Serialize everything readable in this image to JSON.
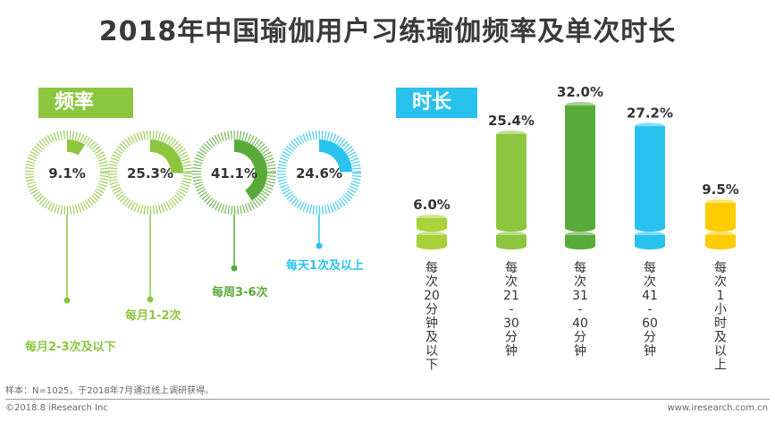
{
  "title": "2018年中国瑜伽用户习练瑜伽频率及单次时长",
  "chart_data": [
    {
      "type": "pie",
      "tag": "频率",
      "items": [
        {
          "label": "每月2-3次及以下",
          "value": 9.1,
          "value_label": "9.1%",
          "color": "#8cc63f"
        },
        {
          "label": "每月1-2次",
          "value": 25.3,
          "value_label": "25.3%",
          "color": "#8cc63f"
        },
        {
          "label": "每周3-6次",
          "value": 41.1,
          "value_label": "41.1%",
          "color": "#5aaa3a"
        },
        {
          "label": "每天1次及以上",
          "value": 24.6,
          "value_label": "24.6%",
          "color": "#29c2ee"
        }
      ]
    },
    {
      "type": "bar",
      "tag": "时长",
      "categories": [
        "每次20分钟及以下",
        "每次21-30分钟",
        "每次31-40分钟",
        "每次41-60分钟",
        "每次1小时及以上"
      ],
      "category_lines": [
        [
          "每",
          "次",
          "20",
          "分",
          "钟",
          "及",
          "以",
          "下"
        ],
        [
          "每",
          "次",
          "21",
          "-",
          "30",
          "分",
          "钟"
        ],
        [
          "每",
          "次",
          "31",
          "-",
          "40",
          "分",
          "钟"
        ],
        [
          "每",
          "次",
          "41",
          "-",
          "60",
          "分",
          "钟"
        ],
        [
          "每",
          "次",
          "1",
          "小",
          "时",
          "及",
          "以",
          "上"
        ]
      ],
      "values": [
        6.0,
        25.4,
        32.0,
        27.2,
        9.5
      ],
      "value_labels": [
        "6.0%",
        "25.4%",
        "32.0%",
        "27.2%",
        "9.5%"
      ],
      "colors": [
        "#a8d13a",
        "#8cc63f",
        "#5aaa3a",
        "#29c2ee",
        "#ffcc00"
      ],
      "ylim": [
        0,
        32
      ]
    }
  ],
  "footer": {
    "note": "样本：N=1025，于2018年7月通过线上调研获得。",
    "copyright": "©2018.8 iResearch Inc",
    "site": "www.iresearch.com.cn"
  }
}
